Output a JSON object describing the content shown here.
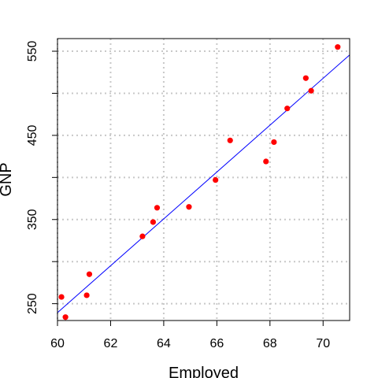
{
  "chart_data": {
    "type": "scatter",
    "title": "",
    "xlabel": "Employed",
    "ylabel": "GNP",
    "xlim": [
      60,
      71
    ],
    "ylim": [
      230,
      565
    ],
    "xticks": [
      60,
      62,
      64,
      66,
      68,
      70
    ],
    "yticks_labeled": [
      250,
      350,
      450,
      550
    ],
    "yticks_minor": [
      300,
      400,
      500
    ],
    "grid": true,
    "grid_style": "dotted",
    "legend": "none",
    "points": [
      {
        "x": 60.15,
        "y": 258
      },
      {
        "x": 60.3,
        "y": 234
      },
      {
        "x": 61.1,
        "y": 260
      },
      {
        "x": 61.2,
        "y": 285
      },
      {
        "x": 63.2,
        "y": 330
      },
      {
        "x": 63.6,
        "y": 347
      },
      {
        "x": 63.75,
        "y": 364
      },
      {
        "x": 64.95,
        "y": 365
      },
      {
        "x": 65.95,
        "y": 397
      },
      {
        "x": 66.5,
        "y": 444
      },
      {
        "x": 67.85,
        "y": 419
      },
      {
        "x": 68.15,
        "y": 442
      },
      {
        "x": 68.65,
        "y": 482
      },
      {
        "x": 69.35,
        "y": 518
      },
      {
        "x": 69.55,
        "y": 503
      },
      {
        "x": 70.55,
        "y": 555
      }
    ],
    "regression_line": {
      "intercept": -1431,
      "slope": 27.84
    },
    "colors": {
      "points": "#ff0000",
      "line": "#0000ff",
      "grid": "#c8c8c8",
      "axes": "#000000"
    }
  }
}
